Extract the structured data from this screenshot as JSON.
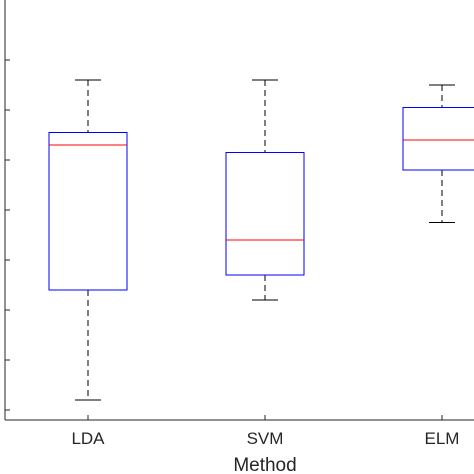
{
  "chart_data": {
    "type": "box",
    "xlabel": "Method",
    "categories": [
      "LDA",
      "SVM",
      "ELM"
    ],
    "ylim": [
      0,
      8
    ],
    "yticks": [
      0.2,
      1.2,
      2.2,
      3.2,
      4.2,
      5.2,
      6.2,
      7.2
    ],
    "boxes": [
      {
        "name": "LDA",
        "whisker_low": 0.4,
        "q1": 2.6,
        "median": 5.5,
        "q3": 5.75,
        "whisker_high": 6.8
      },
      {
        "name": "SVM",
        "whisker_low": 2.4,
        "q1": 2.9,
        "median": 3.6,
        "q3": 5.35,
        "whisker_high": 6.8
      },
      {
        "name": "ELM",
        "whisker_low": 3.95,
        "q1": 5.0,
        "median": 5.6,
        "q3": 6.25,
        "whisker_high": 6.7
      }
    ],
    "colors": {
      "box": "#0000ff",
      "median": "#ff0000",
      "whisker": "#000000",
      "axis": "#262626"
    },
    "grid": false
  }
}
